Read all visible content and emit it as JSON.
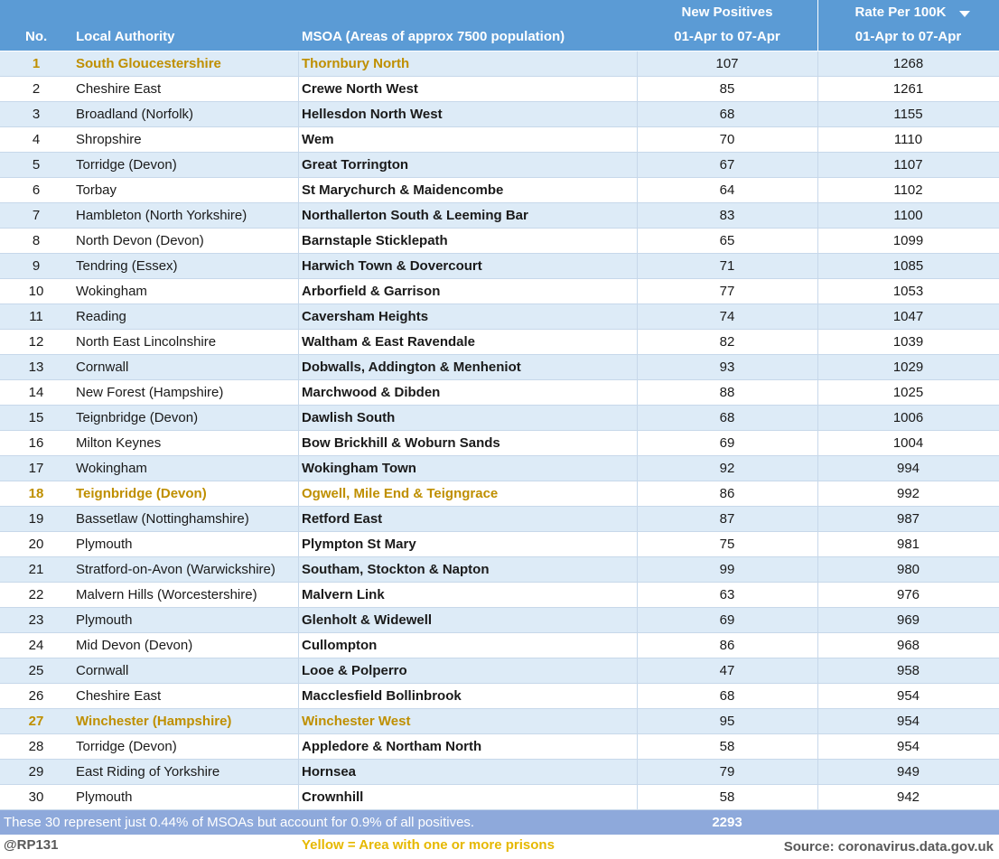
{
  "header": {
    "no": "No.",
    "local_authority": "Local Authority",
    "msoa": "MSOA (Areas of approx 7500 population)",
    "positives_title": "New Positives",
    "positives_period": "01-Apr to 07-Apr",
    "rate_title": "Rate Per 100K",
    "rate_period": "01-Apr to 07-Apr"
  },
  "rows": [
    {
      "no": 1,
      "local_authority": "South Gloucestershire",
      "msoa": "Thornbury North",
      "new_positives": 107,
      "rate": 1268,
      "prison": true
    },
    {
      "no": 2,
      "local_authority": "Cheshire East",
      "msoa": "Crewe North West",
      "new_positives": 85,
      "rate": 1261,
      "prison": false
    },
    {
      "no": 3,
      "local_authority": "Broadland (Norfolk)",
      "msoa": "Hellesdon North West",
      "new_positives": 68,
      "rate": 1155,
      "prison": false
    },
    {
      "no": 4,
      "local_authority": "Shropshire",
      "msoa": "Wem",
      "new_positives": 70,
      "rate": 1110,
      "prison": false
    },
    {
      "no": 5,
      "local_authority": "Torridge (Devon)",
      "msoa": "Great Torrington",
      "new_positives": 67,
      "rate": 1107,
      "prison": false
    },
    {
      "no": 6,
      "local_authority": "Torbay",
      "msoa": "St Marychurch & Maidencombe",
      "new_positives": 64,
      "rate": 1102,
      "prison": false
    },
    {
      "no": 7,
      "local_authority": "Hambleton (North Yorkshire)",
      "msoa": "Northallerton South & Leeming Bar",
      "new_positives": 83,
      "rate": 1100,
      "prison": false
    },
    {
      "no": 8,
      "local_authority": "North Devon (Devon)",
      "msoa": "Barnstaple Sticklepath",
      "new_positives": 65,
      "rate": 1099,
      "prison": false
    },
    {
      "no": 9,
      "local_authority": "Tendring (Essex)",
      "msoa": "Harwich Town & Dovercourt",
      "new_positives": 71,
      "rate": 1085,
      "prison": false
    },
    {
      "no": 10,
      "local_authority": "Wokingham",
      "msoa": "Arborfield & Garrison",
      "new_positives": 77,
      "rate": 1053,
      "prison": false
    },
    {
      "no": 11,
      "local_authority": "Reading",
      "msoa": "Caversham Heights",
      "new_positives": 74,
      "rate": 1047,
      "prison": false
    },
    {
      "no": 12,
      "local_authority": "North East Lincolnshire",
      "msoa": "Waltham & East Ravendale",
      "new_positives": 82,
      "rate": 1039,
      "prison": false
    },
    {
      "no": 13,
      "local_authority": "Cornwall",
      "msoa": "Dobwalls, Addington & Menheniot",
      "new_positives": 93,
      "rate": 1029,
      "prison": false
    },
    {
      "no": 14,
      "local_authority": "New Forest (Hampshire)",
      "msoa": "Marchwood & Dibden",
      "new_positives": 88,
      "rate": 1025,
      "prison": false
    },
    {
      "no": 15,
      "local_authority": "Teignbridge (Devon)",
      "msoa": "Dawlish South",
      "new_positives": 68,
      "rate": 1006,
      "prison": false
    },
    {
      "no": 16,
      "local_authority": "Milton Keynes",
      "msoa": "Bow Brickhill & Woburn Sands",
      "new_positives": 69,
      "rate": 1004,
      "prison": false
    },
    {
      "no": 17,
      "local_authority": "Wokingham",
      "msoa": "Wokingham Town",
      "new_positives": 92,
      "rate": 994,
      "prison": false
    },
    {
      "no": 18,
      "local_authority": "Teignbridge (Devon)",
      "msoa": "Ogwell, Mile End & Teigngrace",
      "new_positives": 86,
      "rate": 992,
      "prison": true
    },
    {
      "no": 19,
      "local_authority": "Bassetlaw (Nottinghamshire)",
      "msoa": "Retford East",
      "new_positives": 87,
      "rate": 987,
      "prison": false
    },
    {
      "no": 20,
      "local_authority": "Plymouth",
      "msoa": "Plympton St Mary",
      "new_positives": 75,
      "rate": 981,
      "prison": false
    },
    {
      "no": 21,
      "local_authority": "Stratford-on-Avon (Warwickshire)",
      "msoa": "Southam, Stockton & Napton",
      "new_positives": 99,
      "rate": 980,
      "prison": false
    },
    {
      "no": 22,
      "local_authority": "Malvern Hills (Worcestershire)",
      "msoa": "Malvern Link",
      "new_positives": 63,
      "rate": 976,
      "prison": false
    },
    {
      "no": 23,
      "local_authority": "Plymouth",
      "msoa": "Glenholt & Widewell",
      "new_positives": 69,
      "rate": 969,
      "prison": false
    },
    {
      "no": 24,
      "local_authority": "Mid Devon (Devon)",
      "msoa": "Cullompton",
      "new_positives": 86,
      "rate": 968,
      "prison": false
    },
    {
      "no": 25,
      "local_authority": "Cornwall",
      "msoa": "Looe & Polperro",
      "new_positives": 47,
      "rate": 958,
      "prison": false
    },
    {
      "no": 26,
      "local_authority": "Cheshire East",
      "msoa": "Macclesfield Bollinbrook",
      "new_positives": 68,
      "rate": 954,
      "prison": false
    },
    {
      "no": 27,
      "local_authority": "Winchester (Hampshire)",
      "msoa": "Winchester West",
      "new_positives": 95,
      "rate": 954,
      "prison": true
    },
    {
      "no": 28,
      "local_authority": "Torridge (Devon)",
      "msoa": "Appledore & Northam North",
      "new_positives": 58,
      "rate": 954,
      "prison": false
    },
    {
      "no": 29,
      "local_authority": "East Riding of Yorkshire",
      "msoa": "Hornsea",
      "new_positives": 79,
      "rate": 949,
      "prison": false
    },
    {
      "no": 30,
      "local_authority": "Plymouth",
      "msoa": "Crownhill",
      "new_positives": 58,
      "rate": 942,
      "prison": false
    }
  ],
  "footer": {
    "note": "These 30 represent just 0.44% of MSOAs but account for 0.9% of all positives.",
    "total": 2293
  },
  "bottom": {
    "credit": "@RP131",
    "legend": "Yellow = Area with one or more prisons",
    "source": "Source: coronavirus.data.gov.uk"
  }
}
